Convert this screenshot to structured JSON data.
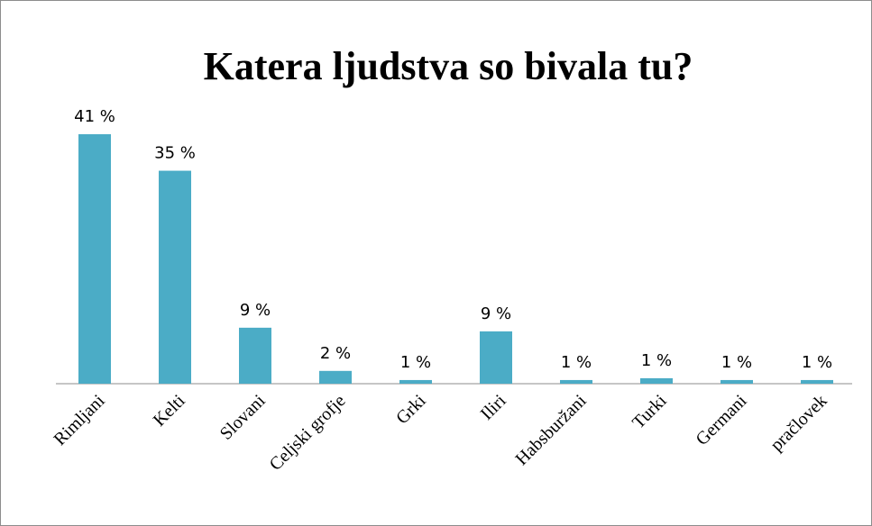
{
  "chart_data": {
    "type": "bar",
    "title": "Katera ljudstva so bivala tu?",
    "categories": [
      "Rimljani",
      "Kelti",
      "Slovani",
      "Celjski grofje",
      "Grki",
      "Iliri",
      "Habsburžani",
      "Turki",
      "Germani",
      "pračlovek"
    ],
    "values": [
      41,
      35,
      9.2,
      2.1,
      0.6,
      8.6,
      0.6,
      0.9,
      0.6,
      0.6
    ],
    "value_labels": [
      "41 %",
      "35 %",
      "9 %",
      "2 %",
      "1 %",
      "9 %",
      "1 %",
      "1 %",
      "1 %",
      "1 %"
    ],
    "color": "#4bacc6",
    "ylim": [
      0,
      45
    ]
  }
}
